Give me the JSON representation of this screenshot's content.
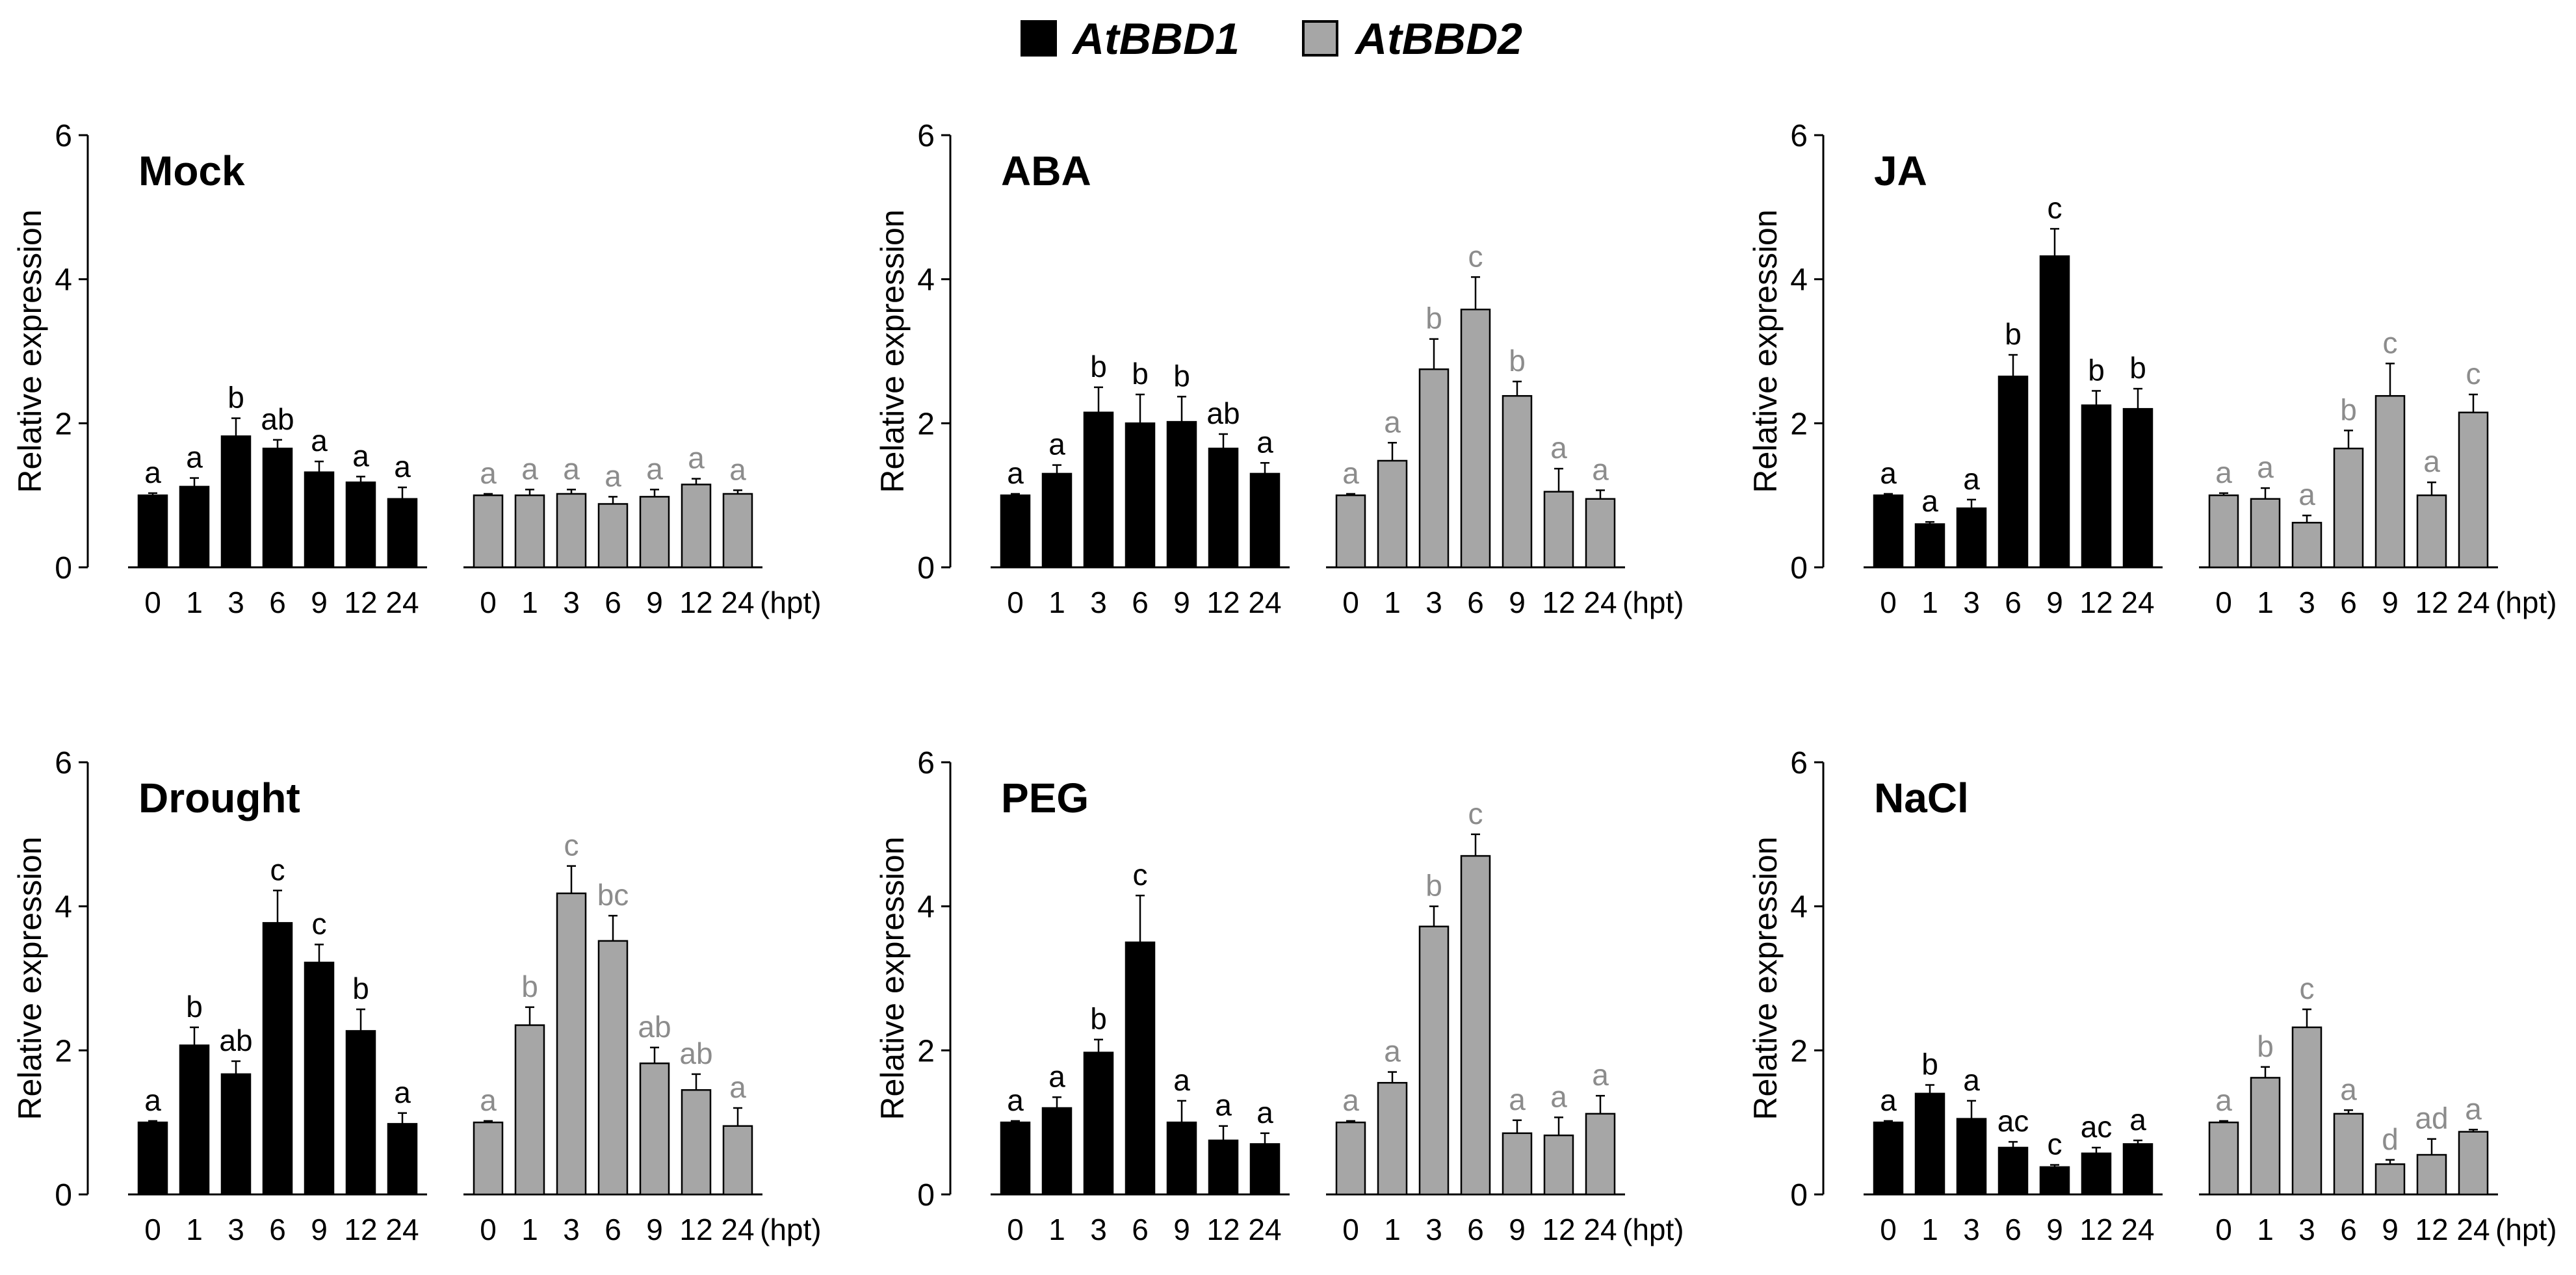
{
  "legend": [
    {
      "label": "AtBBD1",
      "color": "#000000"
    },
    {
      "label": "AtBBD2",
      "color": "#a6a6a6"
    }
  ],
  "colors": {
    "bbd1": "#000000",
    "bbd2": "#a6a6a6",
    "sig_bbd1": "#000000",
    "sig_bbd2": "#8c8c8c"
  },
  "chart_data": [
    {
      "type": "bar",
      "title": "Mock",
      "ylabel": "Relative expression",
      "ylim": [
        0,
        6
      ],
      "yticks": [
        0,
        2,
        4,
        6
      ],
      "categories": [
        "0",
        "1",
        "3",
        "6",
        "9",
        "12",
        "24"
      ],
      "xunit": "(hpt)",
      "series": [
        {
          "name": "AtBBD1",
          "values": [
            1.0,
            1.12,
            1.82,
            1.65,
            1.32,
            1.18,
            0.95
          ],
          "errors": [
            0.03,
            0.12,
            0.25,
            0.12,
            0.15,
            0.08,
            0.16
          ],
          "letters": [
            "a",
            "a",
            "b",
            "ab",
            "a",
            "a",
            "a"
          ]
        },
        {
          "name": "AtBBD2",
          "values": [
            1.0,
            1.0,
            1.02,
            0.88,
            0.98,
            1.15,
            1.02
          ],
          "errors": [
            0.02,
            0.08,
            0.06,
            0.1,
            0.1,
            0.08,
            0.05
          ],
          "letters": [
            "a",
            "a",
            "a",
            "a",
            "a",
            "a",
            "a"
          ]
        }
      ]
    },
    {
      "type": "bar",
      "title": "ABA",
      "ylabel": "Relative expression",
      "ylim": [
        0,
        6
      ],
      "yticks": [
        0,
        2,
        4,
        6
      ],
      "categories": [
        "0",
        "1",
        "3",
        "6",
        "9",
        "12",
        "24"
      ],
      "xunit": "(hpt)",
      "series": [
        {
          "name": "AtBBD1",
          "values": [
            1.0,
            1.3,
            2.15,
            2.0,
            2.02,
            1.65,
            1.3
          ],
          "errors": [
            0.02,
            0.12,
            0.35,
            0.4,
            0.35,
            0.2,
            0.15
          ],
          "letters": [
            "a",
            "a",
            "b",
            "b",
            "b",
            "ab",
            "a"
          ]
        },
        {
          "name": "AtBBD2",
          "values": [
            1.0,
            1.48,
            2.75,
            3.58,
            2.38,
            1.05,
            0.95
          ],
          "errors": [
            0.02,
            0.25,
            0.42,
            0.45,
            0.2,
            0.32,
            0.12
          ],
          "letters": [
            "a",
            "a",
            "b",
            "c",
            "b",
            "a",
            "a"
          ]
        }
      ]
    },
    {
      "type": "bar",
      "title": "JA",
      "ylabel": "Relative expression",
      "ylim": [
        0,
        6
      ],
      "yticks": [
        0,
        2,
        4,
        6
      ],
      "categories": [
        "0",
        "1",
        "3",
        "6",
        "9",
        "12",
        "24"
      ],
      "xunit": "(hpt)",
      "series": [
        {
          "name": "AtBBD1",
          "values": [
            1.0,
            0.6,
            0.82,
            2.65,
            4.32,
            2.25,
            2.2
          ],
          "errors": [
            0.02,
            0.03,
            0.12,
            0.3,
            0.38,
            0.2,
            0.28
          ],
          "letters": [
            "a",
            "a",
            "a",
            "b",
            "c",
            "b",
            "b"
          ]
        },
        {
          "name": "AtBBD2",
          "values": [
            1.0,
            0.95,
            0.62,
            1.65,
            2.38,
            1.0,
            2.15
          ],
          "errors": [
            0.03,
            0.15,
            0.1,
            0.25,
            0.45,
            0.18,
            0.25
          ],
          "letters": [
            "a",
            "a",
            "a",
            "b",
            "c",
            "a",
            "c"
          ]
        }
      ]
    },
    {
      "type": "bar",
      "title": "Drought",
      "ylabel": "Relative expression",
      "ylim": [
        0,
        6
      ],
      "yticks": [
        0,
        2,
        4,
        6
      ],
      "categories": [
        "0",
        "1",
        "3",
        "6",
        "9",
        "12",
        "24"
      ],
      "xunit": "(hpt)",
      "series": [
        {
          "name": "AtBBD1",
          "values": [
            1.0,
            2.07,
            1.67,
            3.77,
            3.22,
            2.27,
            0.98
          ],
          "errors": [
            0.02,
            0.25,
            0.18,
            0.45,
            0.25,
            0.3,
            0.15
          ],
          "letters": [
            "a",
            "b",
            "ab",
            "c",
            "c",
            "b",
            "a"
          ]
        },
        {
          "name": "AtBBD2",
          "values": [
            1.0,
            2.35,
            4.18,
            3.52,
            1.82,
            1.45,
            0.95
          ],
          "errors": [
            0.02,
            0.25,
            0.38,
            0.35,
            0.22,
            0.22,
            0.25
          ],
          "letters": [
            "a",
            "b",
            "c",
            "bc",
            "ab",
            "ab",
            "a"
          ]
        }
      ]
    },
    {
      "type": "bar",
      "title": "PEG",
      "ylabel": "Relative expression",
      "ylim": [
        0,
        6
      ],
      "yticks": [
        0,
        2,
        4,
        6
      ],
      "categories": [
        "0",
        "1",
        "3",
        "6",
        "9",
        "12",
        "24"
      ],
      "xunit": "(hpt)",
      "series": [
        {
          "name": "AtBBD1",
          "values": [
            1.0,
            1.2,
            1.97,
            3.5,
            1.0,
            0.75,
            0.7
          ],
          "errors": [
            0.02,
            0.15,
            0.18,
            0.65,
            0.3,
            0.2,
            0.15
          ],
          "letters": [
            "a",
            "a",
            "b",
            "c",
            "a",
            "a",
            "a"
          ]
        },
        {
          "name": "AtBBD2",
          "values": [
            1.0,
            1.55,
            3.72,
            4.7,
            0.85,
            0.82,
            1.12
          ],
          "errors": [
            0.02,
            0.15,
            0.28,
            0.3,
            0.18,
            0.25,
            0.25
          ],
          "letters": [
            "a",
            "a",
            "b",
            "c",
            "a",
            "a",
            "a"
          ]
        }
      ]
    },
    {
      "type": "bar",
      "title": "NaCl",
      "ylabel": "Relative expression",
      "ylim": [
        0,
        6
      ],
      "yticks": [
        0,
        2,
        4,
        6
      ],
      "categories": [
        "0",
        "1",
        "3",
        "6",
        "9",
        "12",
        "24"
      ],
      "xunit": "(hpt)",
      "series": [
        {
          "name": "AtBBD1",
          "values": [
            1.0,
            1.4,
            1.05,
            0.65,
            0.38,
            0.57,
            0.7
          ],
          "errors": [
            0.02,
            0.12,
            0.25,
            0.08,
            0.03,
            0.08,
            0.05
          ],
          "letters": [
            "a",
            "b",
            "a",
            "ac",
            "c",
            "ac",
            "a"
          ]
        },
        {
          "name": "AtBBD2",
          "values": [
            1.0,
            1.62,
            2.32,
            1.12,
            0.42,
            0.55,
            0.87
          ],
          "errors": [
            0.02,
            0.15,
            0.25,
            0.05,
            0.06,
            0.22,
            0.03
          ],
          "letters": [
            "a",
            "b",
            "c",
            "a",
            "d",
            "ad",
            "a"
          ]
        }
      ]
    }
  ]
}
